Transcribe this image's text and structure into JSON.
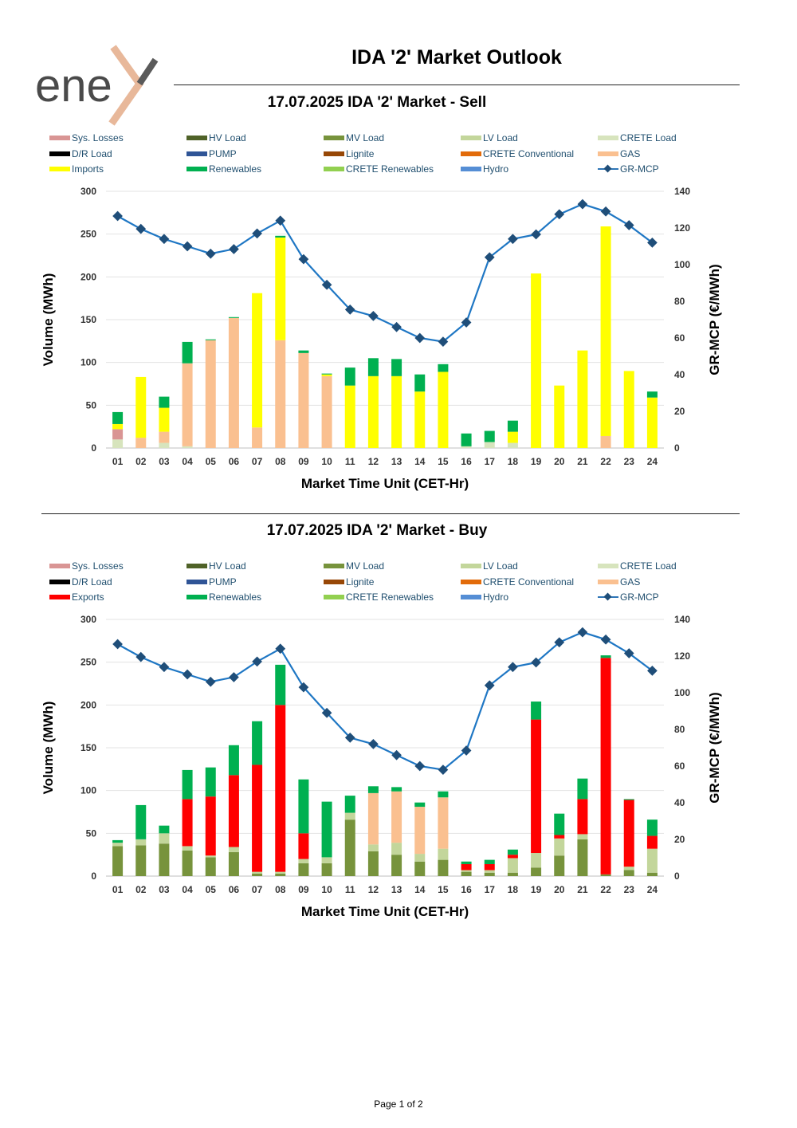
{
  "page_title": "IDA '2' Market Outlook",
  "logo": {
    "text": "ene",
    "accent_color": "#e8b89a"
  },
  "footer": "Page 1 of 2",
  "colors": {
    "Sys. Losses": "#d99594",
    "HV Load": "#4f6228",
    "MV Load": "#77933c",
    "LV Load": "#c3d69b",
    "CRETE Load": "#d7e4bd",
    "D/R Load": "#000000",
    "PUMP": "#2f5496",
    "Lignite": "#974706",
    "CRETE Conventional": "#e26b0a",
    "GAS": "#fac090",
    "Imports": "#ffff00",
    "Exports": "#ff0000",
    "Renewables": "#00b050",
    "CRETE Renewables": "#92d050",
    "Hydro": "#558ed5",
    "GR-MCP": "#1f4e79"
  },
  "chart_data": [
    {
      "type": "bar",
      "stacked": true,
      "title": "17.07.2025  IDA '2' Market - Sell",
      "xlabel": "Market Time Unit (CET-Hr)",
      "ylabel": "Volume (MWh)",
      "y2label": "GR-MCP (€/MWh)",
      "ylim": [
        0,
        300
      ],
      "yticks": [
        0,
        50,
        100,
        150,
        200,
        250,
        300
      ],
      "y2lim": [
        0,
        140
      ],
      "y2ticks": [
        0,
        20,
        40,
        60,
        80,
        100,
        120,
        140
      ],
      "categories": [
        "01",
        "02",
        "03",
        "04",
        "05",
        "06",
        "07",
        "08",
        "09",
        "10",
        "11",
        "12",
        "13",
        "14",
        "15",
        "16",
        "17",
        "18",
        "19",
        "20",
        "21",
        "22",
        "23",
        "24"
      ],
      "legend": [
        "Sys. Losses",
        "HV Load",
        "MV Load",
        "LV Load",
        "CRETE Load",
        "D/R Load",
        "PUMP",
        "Lignite",
        "CRETE Conventional",
        "GAS",
        "Imports",
        "Renewables",
        "CRETE Renewables",
        "Hydro",
        "GR-MCP"
      ],
      "series": [
        {
          "name": "CRETE Load",
          "values": [
            10,
            0,
            6,
            2,
            0,
            0,
            0,
            0,
            0,
            0,
            0,
            0,
            0,
            0,
            0,
            2,
            7,
            6,
            0,
            0,
            0,
            0,
            0,
            0
          ]
        },
        {
          "name": "Sys. Losses",
          "values": [
            12,
            0,
            0,
            0,
            0,
            0,
            0,
            0,
            0,
            0,
            0,
            0,
            0,
            0,
            0,
            0,
            0,
            0,
            0,
            0,
            0,
            0,
            0,
            0
          ]
        },
        {
          "name": "GAS",
          "values": [
            0,
            12,
            13,
            97,
            126,
            152,
            24,
            126,
            111,
            84,
            0,
            0,
            0,
            0,
            0,
            0,
            0,
            0,
            0,
            0,
            0,
            14,
            0,
            0
          ]
        },
        {
          "name": "Imports",
          "values": [
            6,
            71,
            28,
            0,
            0,
            0,
            157,
            120,
            0,
            2,
            73,
            84,
            84,
            66,
            89,
            0,
            0,
            13,
            204,
            73,
            114,
            245,
            90,
            59
          ]
        },
        {
          "name": "Renewables",
          "values": [
            14,
            0,
            13,
            25,
            1,
            1,
            0,
            2,
            3,
            1,
            21,
            21,
            20,
            20,
            9,
            15,
            13,
            13,
            0,
            0,
            0,
            0,
            0,
            7
          ]
        }
      ],
      "line": {
        "name": "GR-MCP",
        "values": [
          126.5,
          119.5,
          114.0,
          110.0,
          106.0,
          108.5,
          117.0,
          124.0,
          103.0,
          89.0,
          75.5,
          72.0,
          66.0,
          60.0,
          58.0,
          68.5,
          104.0,
          114.0,
          116.5,
          127.5,
          133.0,
          129.0,
          121.5,
          112.0
        ]
      }
    },
    {
      "type": "bar",
      "stacked": true,
      "title": "17.07.2025  IDA '2' Market - Buy",
      "xlabel": "Market Time Unit (CET-Hr)",
      "ylabel": "Volume (MWh)",
      "y2label": "GR-MCP (€/MWh)",
      "ylim": [
        0,
        300
      ],
      "yticks": [
        0,
        50,
        100,
        150,
        200,
        250,
        300
      ],
      "y2lim": [
        0,
        140
      ],
      "y2ticks": [
        0,
        20,
        40,
        60,
        80,
        100,
        120,
        140
      ],
      "categories": [
        "01",
        "02",
        "03",
        "04",
        "05",
        "06",
        "07",
        "08",
        "09",
        "10",
        "11",
        "12",
        "13",
        "14",
        "15",
        "16",
        "17",
        "18",
        "19",
        "20",
        "21",
        "22",
        "23",
        "24"
      ],
      "legend": [
        "Sys. Losses",
        "HV Load",
        "MV Load",
        "LV Load",
        "CRETE Load",
        "D/R Load",
        "PUMP",
        "Lignite",
        "CRETE Conventional",
        "GAS",
        "Exports",
        "Renewables",
        "CRETE Renewables",
        "Hydro",
        "GR-MCP"
      ],
      "series": [
        {
          "name": "MV Load",
          "values": [
            35,
            36,
            38,
            30,
            22,
            28,
            3,
            3,
            15,
            15,
            66,
            29,
            25,
            17,
            19,
            5,
            4,
            4,
            10,
            24,
            43,
            2,
            7,
            4
          ]
        },
        {
          "name": "LV Load",
          "values": [
            4,
            7,
            12,
            5,
            2,
            6,
            2,
            2,
            5,
            7,
            8,
            8,
            14,
            9,
            13,
            2,
            3,
            17,
            17,
            20,
            6,
            0,
            4,
            28
          ]
        },
        {
          "name": "GAS",
          "values": [
            0,
            0,
            0,
            0,
            0,
            0,
            0,
            0,
            0,
            0,
            0,
            60,
            60,
            55,
            60,
            0,
            0,
            0,
            0,
            0,
            0,
            0,
            0,
            0
          ]
        },
        {
          "name": "Exports",
          "values": [
            0,
            0,
            0,
            55,
            69,
            84,
            125,
            195,
            30,
            0,
            0,
            0,
            0,
            0,
            0,
            7,
            7,
            4,
            156,
            4,
            41,
            253,
            78,
            15
          ]
        },
        {
          "name": "Renewables",
          "values": [
            3,
            40,
            9,
            34,
            34,
            35,
            51,
            47,
            63,
            65,
            20,
            8,
            5,
            5,
            7,
            3,
            5,
            6,
            21,
            25,
            24,
            3,
            1,
            19
          ]
        }
      ],
      "line": {
        "name": "GR-MCP",
        "values": [
          126.5,
          119.5,
          114.0,
          110.0,
          106.0,
          108.5,
          117.0,
          124.0,
          103.0,
          89.0,
          75.5,
          72.0,
          66.0,
          60.0,
          58.0,
          68.5,
          104.0,
          114.0,
          116.5,
          127.5,
          133.0,
          129.0,
          121.5,
          112.0
        ]
      }
    }
  ]
}
